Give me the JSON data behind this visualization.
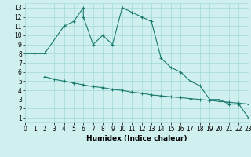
{
  "title": "",
  "xlabel": "Humidex (Indice chaleur)",
  "bg_color": "#cff0ee",
  "grid_color": "#aaddda",
  "line_color": "#1a7a6e",
  "line1_x": [
    0,
    1,
    2,
    4,
    5,
    6,
    6,
    7,
    8,
    9,
    10,
    11,
    12,
    13,
    14,
    15,
    16,
    17,
    18,
    19,
    20,
    21,
    22,
    23
  ],
  "line1_y": [
    8,
    8,
    8,
    11,
    11.5,
    13,
    12,
    9,
    10,
    9,
    13,
    12.5,
    12,
    11.5,
    7.5,
    6.5,
    6,
    5,
    4.5,
    3,
    3,
    2.5,
    2.5,
    1
  ],
  "line2_x": [
    2,
    3,
    4,
    5,
    6,
    7,
    8,
    9,
    10,
    11,
    12,
    13,
    14,
    15,
    16,
    17,
    18,
    19,
    20,
    21,
    22,
    23
  ],
  "line2_y": [
    5.5,
    5.2,
    5.0,
    4.8,
    4.6,
    4.4,
    4.3,
    4.1,
    4.0,
    3.8,
    3.7,
    3.5,
    3.4,
    3.3,
    3.2,
    3.1,
    3.0,
    2.9,
    2.8,
    2.7,
    2.6,
    2.5
  ],
  "xlim": [
    0,
    23
  ],
  "ylim": [
    0.5,
    13.5
  ],
  "xticks": [
    0,
    1,
    2,
    3,
    4,
    5,
    6,
    7,
    8,
    9,
    10,
    11,
    12,
    13,
    14,
    15,
    16,
    17,
    18,
    19,
    20,
    21,
    22,
    23
  ],
  "yticks": [
    1,
    2,
    3,
    4,
    5,
    6,
    7,
    8,
    9,
    10,
    11,
    12,
    13
  ],
  "xlabel_fontsize": 6.5,
  "tick_fontsize": 5.5
}
